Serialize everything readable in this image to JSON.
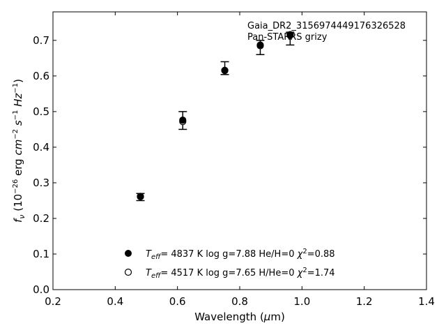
{
  "chart_data": {
    "type": "scatter",
    "xlabel": "Wavelength (μm)",
    "ylabel": "fν (10⁻²⁶ erg cm⁻² s⁻¹ Hz⁻¹)",
    "xlim": [
      0.2,
      1.4
    ],
    "ylim": [
      0.0,
      0.78
    ],
    "xticks": [
      "0.2",
      "0.4",
      "0.6",
      "0.8",
      "1.0",
      "1.2",
      "1.4"
    ],
    "yticks": [
      "0.0",
      "0.1",
      "0.2",
      "0.3",
      "0.4",
      "0.5",
      "0.6",
      "0.7"
    ],
    "grid": false,
    "legend_placement": "lower-center",
    "annotations": [
      "Gaia_DR2_3156974449176326528",
      "Pan-STARRS grizy"
    ],
    "observed": {
      "x": [
        0.481,
        0.617,
        0.752,
        0.866,
        0.962
      ],
      "y": [
        0.26,
        0.475,
        0.622,
        0.68,
        0.705
      ],
      "yerr": [
        0.01,
        0.025,
        0.018,
        0.02,
        0.018
      ]
    },
    "series": [
      {
        "marker": "filled-circle",
        "color": "#000000",
        "label": "T_eff=  4837 K  log g=7.88  He/H=0  χ²=0.88",
        "x": [
          0.481,
          0.617,
          0.752,
          0.866,
          0.962
        ],
        "y": [
          0.262,
          0.476,
          0.616,
          0.687,
          0.716
        ]
      },
      {
        "marker": "open-circle",
        "color": "#000000",
        "label": "T_eff=  4517 K  log g=7.65  H/He=0  χ²=1.74",
        "x": [
          0.481,
          0.617,
          0.752,
          0.866,
          0.962
        ],
        "y": [
          0.261,
          0.472,
          0.615,
          0.685,
          0.714
        ]
      }
    ]
  }
}
